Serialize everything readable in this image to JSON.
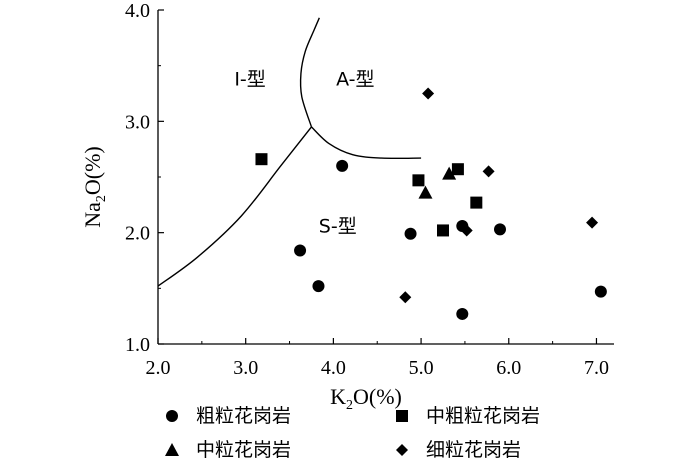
{
  "chart_data": {
    "type": "scatter",
    "xlabel": {
      "base": "K",
      "sub": "2",
      "rest": "O(%)"
    },
    "ylabel": {
      "base": "Na",
      "sub": "2",
      "rest": "O(%)"
    },
    "xlim": [
      2.0,
      7.2
    ],
    "ylim": [
      1.0,
      4.0
    ],
    "x_ticks": [
      2.0,
      3.0,
      4.0,
      5.0,
      6.0,
      7.0
    ],
    "x_tick_labels": [
      "2.0",
      "3.0",
      "4.0",
      "5.0",
      "6.0",
      "7.0"
    ],
    "y_ticks": [
      1.0,
      2.0,
      3.0,
      4.0
    ],
    "y_tick_labels": [
      "1.0",
      "2.0",
      "3.0",
      "4.0"
    ],
    "grid": false,
    "region_labels": [
      {
        "text": "I-型",
        "x": 3.05,
        "y": 3.32
      },
      {
        "text": "A-型",
        "x": 4.25,
        "y": 3.32
      },
      {
        "text": "S-型",
        "x": 4.05,
        "y": 2.0
      }
    ],
    "boundaries": [
      {
        "name": "S-I",
        "points": [
          [
            2.0,
            1.52
          ],
          [
            2.45,
            1.78
          ],
          [
            2.95,
            2.15
          ],
          [
            3.4,
            2.6
          ],
          [
            3.75,
            2.95
          ]
        ]
      },
      {
        "name": "I-A",
        "points": [
          [
            3.75,
            2.95
          ],
          [
            3.64,
            3.22
          ],
          [
            3.63,
            3.43
          ],
          [
            3.68,
            3.63
          ],
          [
            3.78,
            3.82
          ],
          [
            3.84,
            3.93
          ]
        ]
      },
      {
        "name": "S-A",
        "points": [
          [
            3.75,
            2.95
          ],
          [
            3.95,
            2.8
          ],
          [
            4.22,
            2.7
          ],
          [
            4.55,
            2.67
          ],
          [
            5.0,
            2.67
          ]
        ]
      }
    ],
    "series": [
      {
        "name": "粗粒花岗岩",
        "marker": "circle",
        "points": [
          [
            3.62,
            1.84
          ],
          [
            3.83,
            1.52
          ],
          [
            4.1,
            2.6
          ],
          [
            4.88,
            1.99
          ],
          [
            5.47,
            2.06
          ],
          [
            5.47,
            1.27
          ],
          [
            5.9,
            2.03
          ],
          [
            7.05,
            1.47
          ]
        ]
      },
      {
        "name": "中粗粒花岗岩",
        "marker": "square",
        "points": [
          [
            3.18,
            2.66
          ],
          [
            4.97,
            2.47
          ],
          [
            5.25,
            2.02
          ],
          [
            5.42,
            2.57
          ],
          [
            5.63,
            2.27
          ]
        ]
      },
      {
        "name": "中粒花岗岩",
        "marker": "triangle",
        "points": [
          [
            5.05,
            2.36
          ],
          [
            5.32,
            2.53
          ]
        ]
      },
      {
        "name": "细粒花岗岩",
        "marker": "diamond",
        "points": [
          [
            5.08,
            3.25
          ],
          [
            4.82,
            1.42
          ],
          [
            5.52,
            2.02
          ],
          [
            5.77,
            2.55
          ],
          [
            6.95,
            2.09
          ]
        ]
      }
    ],
    "legend": {
      "placement": "bottom"
    }
  }
}
